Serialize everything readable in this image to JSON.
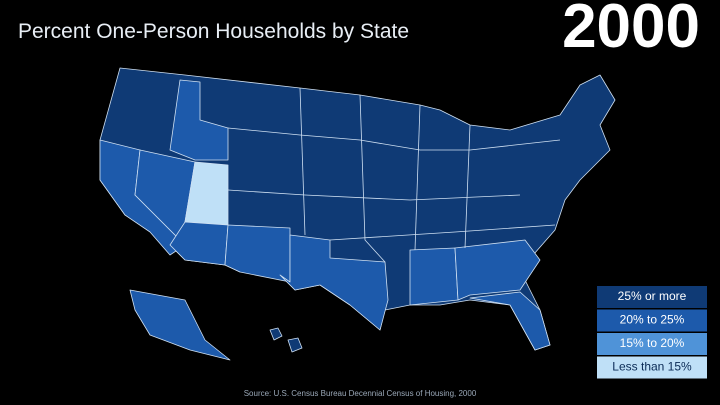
{
  "title": "Percent One-Person Households by State",
  "year": "2000",
  "legend": [
    {
      "label": "25% or more",
      "color": "#0f3a75"
    },
    {
      "label": "20% to 25%",
      "color": "#1d5aab"
    },
    {
      "label": "15% to 20%",
      "color": "#4f93d8"
    },
    {
      "label": "Less than 15%",
      "color": "#bfe0f7"
    }
  ],
  "source": "Source: U.S. Census Bureau Decennial Census of Housing, 2000"
}
